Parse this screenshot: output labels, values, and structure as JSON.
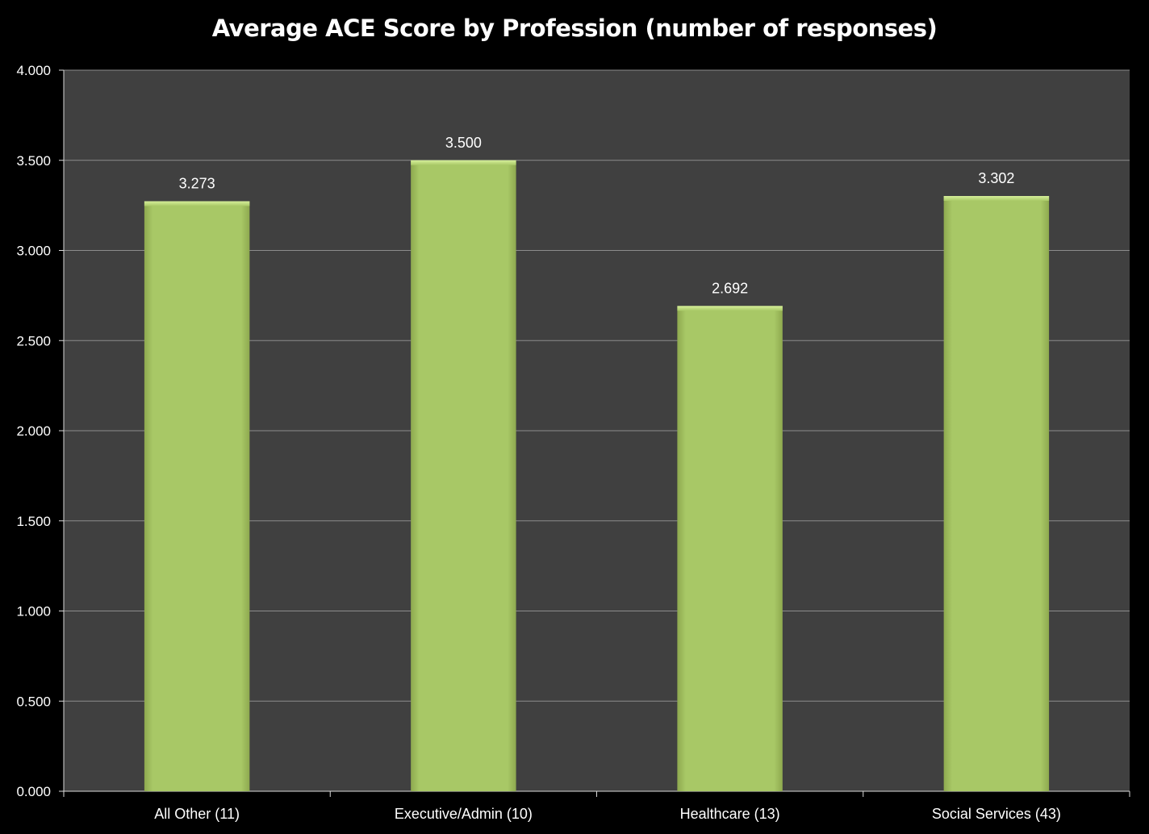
{
  "chart_data": {
    "type": "bar",
    "title": "Average ACE Score by Profession (number of responses)",
    "categories": [
      "All Other (11)",
      "Executive/Admin (10)",
      "Healthcare (13)",
      "Social Services (43)"
    ],
    "values": [
      3.273,
      3.5,
      2.692,
      3.302
    ],
    "data_labels": [
      "3.273",
      "3.500",
      "2.692",
      "3.302"
    ],
    "y_ticks": [
      "0.000",
      "0.500",
      "1.000",
      "1.500",
      "2.000",
      "2.500",
      "3.000",
      "3.500",
      "4.000"
    ],
    "ylim": [
      0,
      4
    ],
    "xlabel": "",
    "ylabel": "",
    "grid": true,
    "legend": "none",
    "colors": {
      "background": "#000000",
      "plot_area": "#404040",
      "bar": "#a5c663",
      "gridline": "#8c8c8c",
      "text": "#ffffff"
    }
  }
}
